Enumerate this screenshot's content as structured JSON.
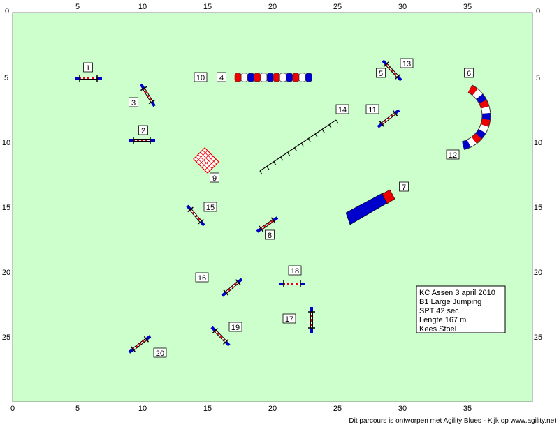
{
  "axes": {
    "x_ticks": [
      0,
      5,
      10,
      15,
      20,
      25,
      30,
      35
    ],
    "y_ticks": [
      0,
      5,
      10,
      15,
      20,
      25
    ]
  },
  "obstacle_numbers": [
    1,
    2,
    3,
    4,
    5,
    6,
    7,
    8,
    9,
    10,
    11,
    12,
    13,
    14,
    15,
    16,
    17,
    18,
    19,
    20
  ],
  "info": [
    "KC Assen  3 april 2010",
    "B1 Large Jumping",
    "SPT 42 sec",
    "Lengte 167 m",
    "Kees Stoel"
  ],
  "footer": "Dit parcours is ontworpen met Agility Blues - Kijk op www.agility.net"
}
